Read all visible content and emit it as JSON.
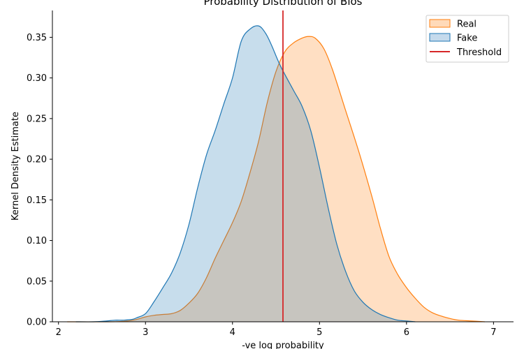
{
  "chart_data": {
    "type": "area",
    "title": "Probability Distribution of Bios",
    "xlabel": "-ve log probability",
    "ylabel": "Kernel Density Estimate",
    "xlim": [
      1.93,
      7.23
    ],
    "ylim": [
      0,
      0.383
    ],
    "xticks": [
      2,
      3,
      4,
      5,
      6,
      7
    ],
    "yticks": [
      0.0,
      0.05,
      0.1,
      0.15,
      0.2,
      0.25,
      0.3,
      0.35
    ],
    "ytick_labels": [
      "0.00",
      "0.05",
      "0.10",
      "0.15",
      "0.20",
      "0.25",
      "0.30",
      "0.35"
    ],
    "grid": false,
    "legend_position": "top-right",
    "threshold": {
      "name": "Threshold",
      "x": 4.58,
      "color": "#d62728"
    },
    "series": [
      {
        "name": "Real",
        "color": "#ff7f0e",
        "fill": "#ffdab9",
        "x": [
          2.1,
          2.6,
          2.8,
          2.9,
          3.0,
          3.1,
          3.2,
          3.3,
          3.4,
          3.5,
          3.6,
          3.7,
          3.8,
          3.9,
          4.0,
          4.1,
          4.2,
          4.3,
          4.4,
          4.5,
          4.6,
          4.7,
          4.8,
          4.87,
          4.95,
          5.05,
          5.15,
          5.3,
          5.45,
          5.6,
          5.7,
          5.8,
          5.9,
          6.0,
          6.1,
          6.2,
          6.3,
          6.4,
          6.5,
          6.6,
          6.75,
          6.9
        ],
        "values": [
          0.0,
          0.0,
          0.001,
          0.003,
          0.006,
          0.008,
          0.009,
          0.01,
          0.014,
          0.023,
          0.035,
          0.054,
          0.078,
          0.1,
          0.122,
          0.148,
          0.183,
          0.222,
          0.27,
          0.308,
          0.332,
          0.343,
          0.349,
          0.351,
          0.349,
          0.336,
          0.31,
          0.26,
          0.21,
          0.155,
          0.115,
          0.08,
          0.058,
          0.042,
          0.029,
          0.018,
          0.011,
          0.007,
          0.004,
          0.002,
          0.001,
          0.0
        ]
      },
      {
        "name": "Fake",
        "color": "#1f77b4",
        "fill": "#c5daec",
        "x": [
          2.2,
          2.4,
          2.55,
          2.65,
          2.75,
          2.85,
          2.9,
          3.0,
          3.1,
          3.2,
          3.3,
          3.4,
          3.5,
          3.6,
          3.7,
          3.8,
          3.9,
          4.0,
          4.1,
          4.2,
          4.3,
          4.38,
          4.45,
          4.55,
          4.7,
          4.8,
          4.9,
          5.0,
          5.1,
          5.2,
          5.3,
          5.4,
          5.5,
          5.6,
          5.7,
          5.8,
          5.9,
          6.0,
          6.1
        ],
        "values": [
          0.0,
          0.0,
          0.001,
          0.002,
          0.002,
          0.003,
          0.005,
          0.01,
          0.025,
          0.042,
          0.06,
          0.085,
          0.12,
          0.165,
          0.205,
          0.235,
          0.268,
          0.3,
          0.345,
          0.36,
          0.364,
          0.355,
          0.34,
          0.315,
          0.285,
          0.265,
          0.235,
          0.19,
          0.14,
          0.095,
          0.062,
          0.038,
          0.024,
          0.015,
          0.009,
          0.005,
          0.002,
          0.001,
          0.0
        ]
      }
    ]
  }
}
